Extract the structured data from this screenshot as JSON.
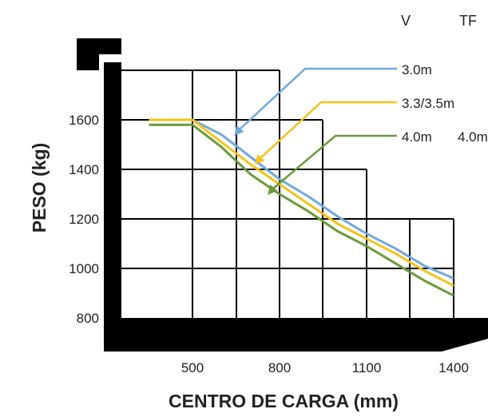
{
  "chart_data": {
    "type": "line",
    "title": "",
    "xlabel": "CENTRO DE CARGA (mm)",
    "ylabel": "PESO (kg)",
    "x_ticks": [
      "500",
      "800",
      "1100",
      "1400"
    ],
    "y_ticks": [
      "800",
      "1000",
      "1200",
      "1400",
      "1600"
    ],
    "ylim": [
      800,
      1600
    ],
    "legend_headers": [
      "V",
      "TF"
    ],
    "series": [
      {
        "name": "3.0m",
        "color": "#6ea9dc",
        "x": [
          350,
          500,
          600,
          700,
          800,
          900,
          1000,
          1100,
          1200,
          1300,
          1400
        ],
        "y": [
          1600,
          1600,
          1540,
          1450,
          1360,
          1290,
          1210,
          1140,
          1080,
          1010,
          960
        ]
      },
      {
        "name": "3.3/3.5m",
        "color": "#f5c218",
        "x": [
          350,
          500,
          600,
          700,
          800,
          900,
          1000,
          1100,
          1200,
          1300,
          1400
        ],
        "y": [
          1600,
          1600,
          1510,
          1420,
          1340,
          1260,
          1180,
          1120,
          1060,
          990,
          930
        ]
      },
      {
        "name": "4.0m",
        "color": "#6a9a3a",
        "tf_label": "4.0m",
        "x": [
          350,
          500,
          600,
          700,
          800,
          900,
          1000,
          1100,
          1200,
          1300,
          1400
        ],
        "y": [
          1580,
          1580,
          1490,
          1380,
          1300,
          1230,
          1150,
          1090,
          1020,
          950,
          890
        ]
      }
    ]
  }
}
